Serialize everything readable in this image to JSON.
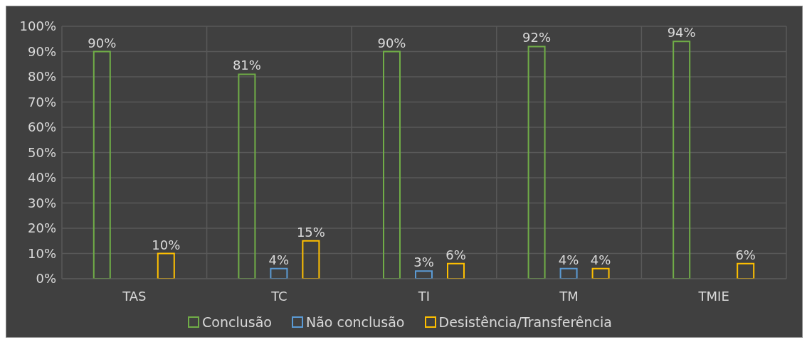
{
  "chart_data": {
    "type": "bar",
    "categories": [
      "TAS",
      "TC",
      "TI",
      "TM",
      "TMIE"
    ],
    "series": [
      {
        "name": "Conclusão",
        "color": "#70ad47",
        "values": [
          90,
          81,
          90,
          92,
          94
        ],
        "value_labels": [
          "90%",
          "81%",
          "90%",
          "92%",
          "94%"
        ]
      },
      {
        "name": "Não conclusão",
        "color": "#5b9bd5",
        "values": [
          null,
          4,
          3,
          4,
          null
        ],
        "value_labels": [
          null,
          "4%",
          "3%",
          "4%",
          null
        ]
      },
      {
        "name": "Desistência/Transferência",
        "color": "#ffc000",
        "values": [
          10,
          15,
          6,
          4,
          6
        ],
        "value_labels": [
          "10%",
          "15%",
          "6%",
          "4%",
          "6%"
        ]
      }
    ],
    "ylim": [
      0,
      100
    ],
    "yticks": [
      {
        "value": 0,
        "label": "0%"
      },
      {
        "value": 10,
        "label": "10%"
      },
      {
        "value": 20,
        "label": "20%"
      },
      {
        "value": 30,
        "label": "30%"
      },
      {
        "value": 40,
        "label": "40%"
      },
      {
        "value": 50,
        "label": "50%"
      },
      {
        "value": 60,
        "label": "60%"
      },
      {
        "value": 70,
        "label": "70%"
      },
      {
        "value": 80,
        "label": "80%"
      },
      {
        "value": 90,
        "label": "90%"
      },
      {
        "value": 100,
        "label": "100%"
      }
    ],
    "grid": true,
    "legend": "bottom"
  }
}
